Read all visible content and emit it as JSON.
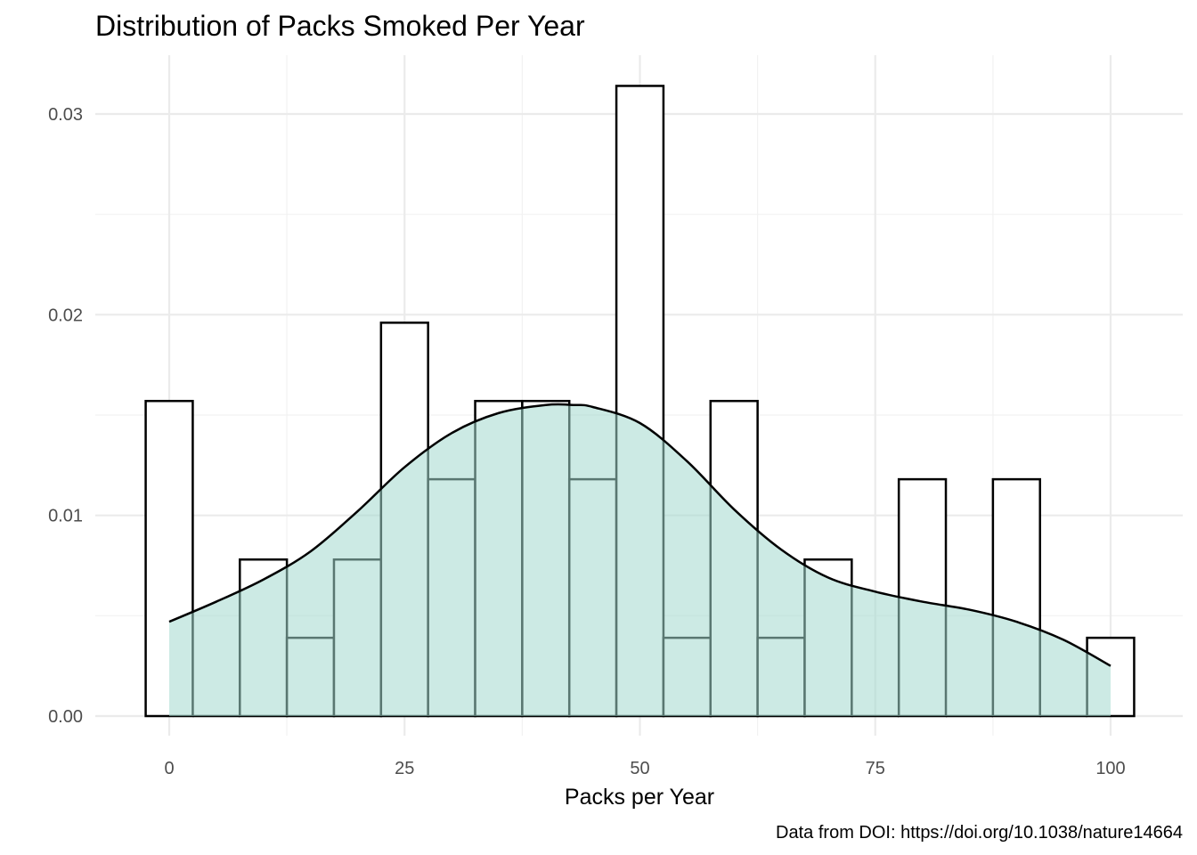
{
  "chart_data": {
    "type": "histogram",
    "title": "Distribution of Packs Smoked Per Year",
    "xlabel": "Packs per Year",
    "ylabel": "",
    "caption": "Data from DOI: https://doi.org/10.1038/nature14664",
    "xlim": [
      -5,
      105
    ],
    "ylim": [
      0,
      0.033
    ],
    "x_ticks": [
      0,
      25,
      50,
      75,
      100
    ],
    "x_tick_labels": [
      "0",
      "25",
      "50",
      "75",
      "100"
    ],
    "y_ticks": [
      0,
      0.01,
      0.02,
      0.03
    ],
    "y_tick_labels": [
      "0.00",
      "0.01",
      "0.02",
      "0.03"
    ],
    "grid": true,
    "bin_width": 5,
    "bins": [
      {
        "center": 0,
        "density": 0.0157
      },
      {
        "center": 5,
        "density": 0.0
      },
      {
        "center": 10,
        "density": 0.0078
      },
      {
        "center": 15,
        "density": 0.0039
      },
      {
        "center": 20,
        "density": 0.0078
      },
      {
        "center": 25,
        "density": 0.0196
      },
      {
        "center": 30,
        "density": 0.0118
      },
      {
        "center": 35,
        "density": 0.0157
      },
      {
        "center": 40,
        "density": 0.0157
      },
      {
        "center": 45,
        "density": 0.0118
      },
      {
        "center": 50,
        "density": 0.0314
      },
      {
        "center": 55,
        "density": 0.0039
      },
      {
        "center": 60,
        "density": 0.0157
      },
      {
        "center": 65,
        "density": 0.0039
      },
      {
        "center": 70,
        "density": 0.0078
      },
      {
        "center": 75,
        "density": 0.0
      },
      {
        "center": 80,
        "density": 0.0118
      },
      {
        "center": 85,
        "density": 0.0
      },
      {
        "center": 90,
        "density": 0.0118
      },
      {
        "center": 95,
        "density": 0.0
      },
      {
        "center": 100,
        "density": 0.0039
      }
    ],
    "density_curve": {
      "x": [
        0,
        5,
        10,
        15,
        20,
        25,
        30,
        35,
        40,
        43,
        45,
        50,
        55,
        60,
        65,
        70,
        75,
        80,
        85,
        90,
        95,
        100
      ],
      "y": [
        0.0047,
        0.0057,
        0.0068,
        0.0082,
        0.0102,
        0.0124,
        0.0141,
        0.0151,
        0.0155,
        0.0155,
        0.0154,
        0.0146,
        0.0127,
        0.0103,
        0.0083,
        0.0069,
        0.0062,
        0.0057,
        0.0053,
        0.0047,
        0.0038,
        0.0025
      ]
    },
    "colors": {
      "density_fill": "#a3d9cd",
      "density_fill_opacity": 0.55,
      "bar_outline": "#000000",
      "bar_fill": "#ffffff",
      "grid_major": "#ebebeb",
      "grid_minor": "#f2f2f2"
    }
  }
}
